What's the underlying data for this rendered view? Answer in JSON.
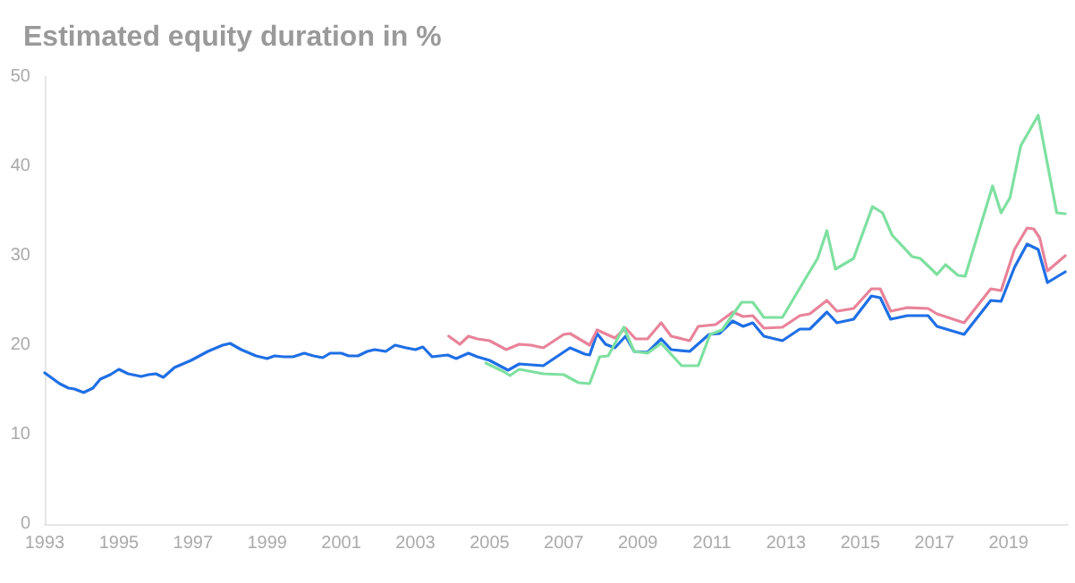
{
  "chart_data": {
    "type": "line",
    "title": "Estimated equity duration in %",
    "xlim": [
      1993,
      2020.6
    ],
    "xticks": [
      1993,
      1995,
      1997,
      1999,
      2001,
      2003,
      2005,
      2007,
      2009,
      2011,
      2013,
      2015,
      2017,
      2019
    ],
    "ylim": [
      0,
      50
    ],
    "yticks": [
      0,
      10,
      20,
      30,
      40,
      50
    ],
    "grid": false,
    "marker": "none",
    "line_style": "solid",
    "series": [
      {
        "color": "#1f6fe5",
        "x": [
          1993.0,
          1993.4,
          1993.64,
          1993.8,
          1994.05,
          1994.3,
          1994.5,
          1994.77,
          1995.0,
          1995.25,
          1995.6,
          1995.8,
          1996.0,
          1996.2,
          1996.5,
          1996.95,
          1997.4,
          1997.8,
          1998.0,
          1998.3,
          1998.7,
          1999.0,
          1999.2,
          1999.45,
          1999.7,
          2000.0,
          2000.25,
          2000.5,
          2000.7,
          2001.0,
          2001.2,
          2001.45,
          2001.7,
          2001.9,
          2002.2,
          2002.45,
          2002.75,
          2003.0,
          2003.2,
          2003.45,
          2003.87,
          2004.1,
          2004.43,
          2004.67,
          2005.0,
          2005.5,
          2005.8,
          2006.45,
          2007.17,
          2007.57,
          2007.7,
          2007.9,
          2008.13,
          2008.38,
          2008.67,
          2008.9,
          2009.26,
          2009.63,
          2009.9,
          2010.4,
          2010.92,
          2011.2,
          2011.56,
          2011.84,
          2012.1,
          2012.4,
          2012.9,
          2013.37,
          2013.64,
          2014.1,
          2014.37,
          2014.82,
          2015.3,
          2015.54,
          2015.82,
          2016.27,
          2016.83,
          2017.07,
          2017.8,
          2018.52,
          2018.8,
          2019.16,
          2019.5,
          2019.8,
          2020.05,
          2020.53
        ],
        "values": [
          16.9,
          15.7,
          15.2,
          15.1,
          14.7,
          15.2,
          16.2,
          16.7,
          17.3,
          16.8,
          16.5,
          16.7,
          16.8,
          16.4,
          17.5,
          18.3,
          19.3,
          20.0,
          20.2,
          19.5,
          18.8,
          18.5,
          18.8,
          18.7,
          18.7,
          19.1,
          18.8,
          18.6,
          19.1,
          19.1,
          18.8,
          18.8,
          19.3,
          19.5,
          19.3,
          20.0,
          19.7,
          19.5,
          19.8,
          18.7,
          18.9,
          18.5,
          19.1,
          18.7,
          18.3,
          17.2,
          17.9,
          17.7,
          19.7,
          19.0,
          18.9,
          21.3,
          20.1,
          19.7,
          21.0,
          19.3,
          19.2,
          20.7,
          19.5,
          19.3,
          21.2,
          21.3,
          22.7,
          22.1,
          22.5,
          21.0,
          20.5,
          21.8,
          21.8,
          23.7,
          22.5,
          22.9,
          25.5,
          25.3,
          22.9,
          23.3,
          23.3,
          22.1,
          21.2,
          25.0,
          24.9,
          28.7,
          31.3,
          30.7,
          27.0,
          28.2
        ]
      },
      {
        "color": "#e8839a",
        "x": [
          2003.9,
          2004.2,
          2004.43,
          2004.67,
          2005.0,
          2005.45,
          2005.8,
          2006.12,
          2006.45,
          2007.0,
          2007.17,
          2007.7,
          2007.9,
          2008.38,
          2008.67,
          2008.94,
          2009.26,
          2009.63,
          2009.9,
          2010.4,
          2010.63,
          2011.1,
          2011.56,
          2011.84,
          2012.1,
          2012.4,
          2012.9,
          2013.37,
          2013.64,
          2014.1,
          2014.37,
          2014.82,
          2015.3,
          2015.54,
          2015.82,
          2016.27,
          2016.83,
          2017.07,
          2017.8,
          2018.52,
          2018.8,
          2019.16,
          2019.5,
          2019.68,
          2019.84,
          2020.05,
          2020.53
        ],
        "values": [
          21.0,
          20.1,
          21.0,
          20.7,
          20.5,
          19.5,
          20.1,
          20.0,
          19.7,
          21.2,
          21.3,
          20.0,
          21.7,
          20.8,
          21.9,
          20.7,
          20.7,
          22.5,
          21.0,
          20.5,
          22.1,
          22.3,
          23.7,
          23.2,
          23.3,
          21.9,
          22.0,
          23.3,
          23.5,
          25.0,
          23.8,
          24.1,
          26.3,
          26.3,
          23.8,
          24.2,
          24.1,
          23.5,
          22.5,
          26.3,
          26.1,
          30.7,
          33.1,
          33.0,
          32.0,
          28.3,
          30.0
        ]
      },
      {
        "color": "#7ee0a0",
        "x": [
          2004.9,
          2005.4,
          2005.55,
          2005.8,
          2006.45,
          2007.0,
          2007.4,
          2007.7,
          2007.97,
          2008.2,
          2008.62,
          2008.9,
          2009.26,
          2009.63,
          2010.18,
          2010.63,
          2010.95,
          2011.27,
          2011.8,
          2012.1,
          2012.4,
          2012.9,
          2013.53,
          2013.85,
          2014.1,
          2014.33,
          2014.82,
          2015.33,
          2015.6,
          2015.86,
          2016.4,
          2016.62,
          2017.07,
          2017.3,
          2017.64,
          2017.83,
          2018.57,
          2018.8,
          2019.04,
          2019.33,
          2019.8,
          2020.3,
          2020.53
        ],
        "values": [
          18.0,
          17.0,
          16.6,
          17.3,
          16.8,
          16.7,
          15.8,
          15.7,
          18.7,
          18.8,
          22.0,
          19.3,
          19.1,
          20.2,
          17.7,
          17.7,
          21.2,
          21.7,
          24.8,
          24.8,
          23.1,
          23.1,
          27.5,
          29.7,
          32.8,
          28.5,
          29.7,
          35.5,
          34.8,
          32.3,
          29.9,
          29.7,
          27.9,
          29.0,
          27.8,
          27.7,
          37.8,
          34.8,
          36.5,
          42.3,
          45.7,
          34.8,
          34.7
        ]
      }
    ]
  }
}
